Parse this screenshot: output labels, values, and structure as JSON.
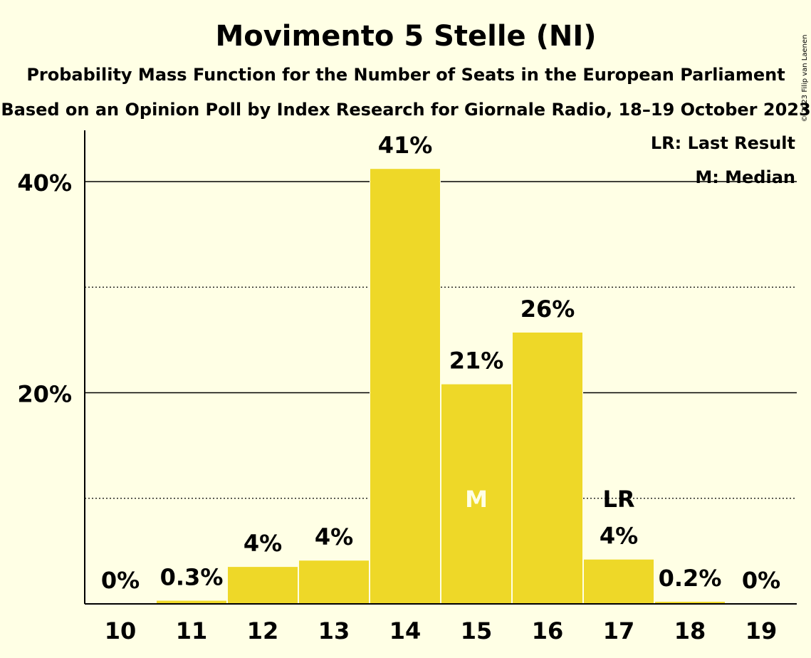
{
  "chart_data": {
    "type": "bar",
    "title": "Movimento 5 Stelle (NI)",
    "subtitle1": "Probability Mass Function for the Number of Seats in the European Parliament",
    "subtitle2": "Based on an Opinion Poll by Index Research for Giornale Radio, 18–19 October 2023",
    "copyright": "© 2023 Filip van Laenen",
    "categories": [
      "10",
      "11",
      "12",
      "13",
      "14",
      "15",
      "16",
      "17",
      "18",
      "19"
    ],
    "values": [
      0,
      0.3,
      3.5,
      4.1,
      41.2,
      20.8,
      25.7,
      4.2,
      0.2,
      0
    ],
    "value_labels": [
      "0%",
      "0.3%",
      "4%",
      "4%",
      "41%",
      "21%",
      "26%",
      "4%",
      "0.2%",
      "0%"
    ],
    "ylim": [
      0,
      45
    ],
    "y_ticks": [
      {
        "value": 20,
        "label": "20%"
      },
      {
        "value": 40,
        "label": "40%"
      }
    ],
    "y_minor_gridlines": [
      10,
      30
    ],
    "bar_color": "#eed828",
    "median_index": 5,
    "median_marker": "M",
    "last_result_index": 7,
    "last_result_marker": "LR",
    "legend": {
      "placement": "top-right",
      "items": [
        "LR: Last Result",
        "M: Median"
      ]
    }
  }
}
